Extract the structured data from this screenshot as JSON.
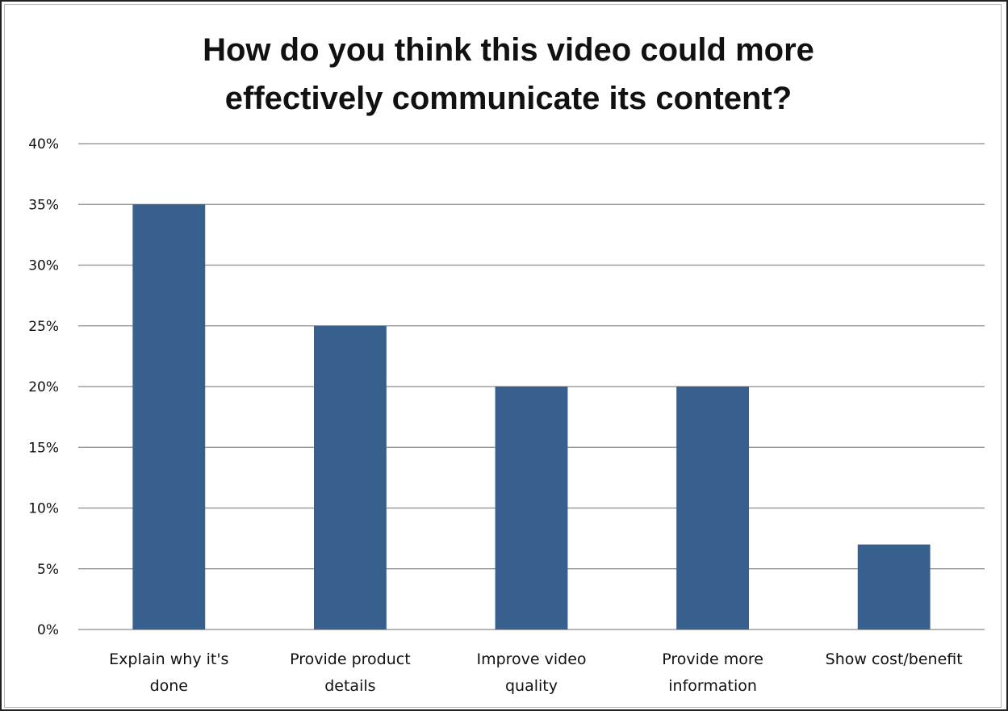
{
  "chart_data": {
    "type": "bar",
    "title_lines": [
      "How do you think this video could more",
      "effectively communicate its content?"
    ],
    "categories": [
      [
        "Explain why it's",
        "done"
      ],
      [
        "Provide product",
        "details"
      ],
      [
        "Improve video",
        "quality"
      ],
      [
        "Provide more",
        "information"
      ],
      [
        "Show cost/benefit"
      ]
    ],
    "values": [
      35,
      25,
      20,
      20,
      7
    ],
    "yticks": [
      "0%",
      "5%",
      "10%",
      "15%",
      "20%",
      "25%",
      "30%",
      "35%",
      "40%"
    ],
    "ylim": [
      0,
      40
    ],
    "grid": true,
    "bar_color": "#38608f",
    "grid_color": "#8c8c8c",
    "axis_color": "#8c8c8c"
  }
}
